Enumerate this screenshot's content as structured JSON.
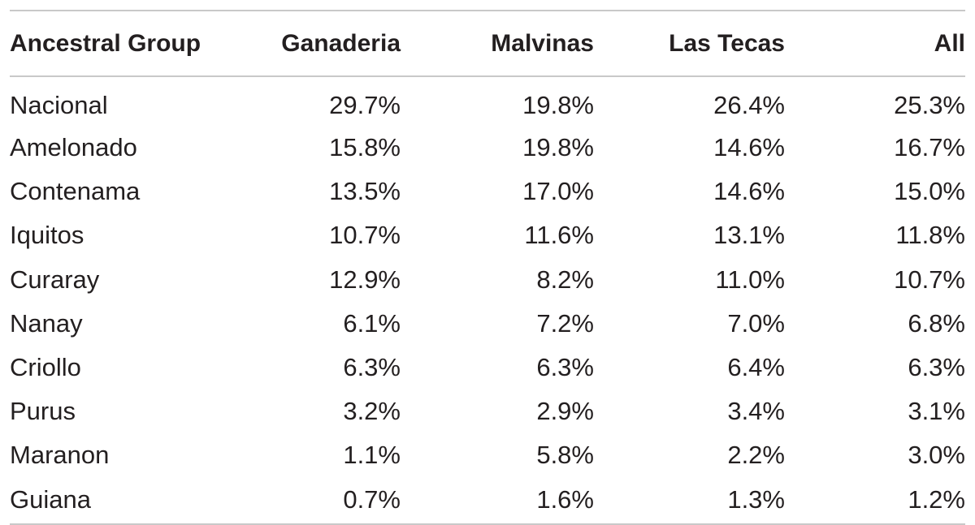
{
  "table": {
    "headers": [
      "Ancestral Group",
      "Ganaderia",
      "Malvinas",
      "Las Tecas",
      "All"
    ],
    "rows": [
      [
        "Nacional",
        "29.7%",
        "19.8%",
        "26.4%",
        "25.3%"
      ],
      [
        "Amelonado",
        "15.8%",
        "19.8%",
        "14.6%",
        "16.7%"
      ],
      [
        "Contenama",
        "13.5%",
        "17.0%",
        "14.6%",
        "15.0%"
      ],
      [
        "Iquitos",
        "10.7%",
        "11.6%",
        "13.1%",
        "11.8%"
      ],
      [
        "Curaray",
        "12.9%",
        "8.2%",
        "11.0%",
        "10.7%"
      ],
      [
        "Nanay",
        "6.1%",
        "7.2%",
        "7.0%",
        "6.8%"
      ],
      [
        "Criollo",
        "6.3%",
        "6.3%",
        "6.4%",
        "6.3%"
      ],
      [
        "Purus",
        "3.2%",
        "2.9%",
        "3.4%",
        "3.1%"
      ],
      [
        "Maranon",
        "1.1%",
        "5.8%",
        "2.2%",
        "3.0%"
      ],
      [
        "Guiana",
        "0.7%",
        "1.6%",
        "1.3%",
        "1.2%"
      ]
    ]
  }
}
